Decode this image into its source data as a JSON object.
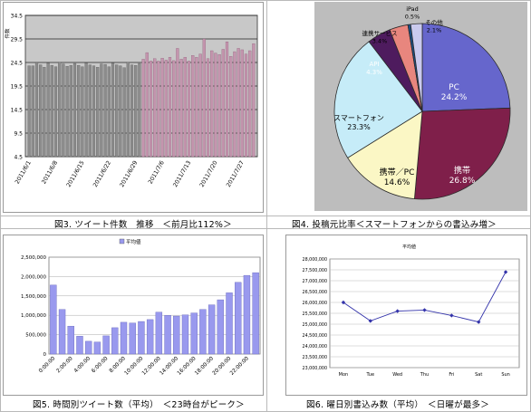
{
  "chart_data": [
    {
      "type": "bar",
      "caption": "図3. ツイート件数　推移　＜前月比112%＞",
      "ylabel": "件数",
      "ylim": [
        4.5,
        34.5
      ],
      "yticks": [
        "4.5",
        "9.5",
        "14.5",
        "19.5",
        "24.5",
        "29.5",
        "34.5"
      ],
      "xtick_labels": [
        "2011/6/1",
        "2011/6/8",
        "2011/6/15",
        "2011/6/22",
        "2011/6/29",
        "2011/7/6",
        "2011/7/13",
        "2011/7/20",
        "2011/7/27"
      ],
      "series": [
        {
          "color": "#8c8c8c",
          "values": [
            23.8,
            23.8,
            24.5,
            24.0,
            23.5,
            24.4,
            23.9,
            23.6,
            24.6,
            24.2,
            23.7,
            23.9,
            24.3,
            23.9,
            23.6,
            24.4,
            24.0,
            23.8,
            23.5,
            24.2,
            24.1,
            23.6,
            24.4,
            24.0,
            23.8,
            23.4,
            24.6,
            24.0,
            23.9,
            24.3
          ]
        },
        {
          "color": "#c495ae",
          "values": [
            25.2,
            26.6,
            24.8,
            25.3,
            24.8,
            25.4,
            25.0,
            25.6,
            24.9,
            27.5,
            25.2,
            25.6,
            24.8,
            26.0,
            25.6,
            26.3,
            29.5,
            25.3,
            27.0,
            26.5,
            26.2,
            27.3,
            28.9,
            25.8,
            26.8,
            27.5,
            27.2,
            26.3,
            27.0,
            28.5
          ]
        }
      ],
      "grid": true
    },
    {
      "type": "pie",
      "caption": "図4. 投稿元比率＜スマートフォンからの書込み増＞",
      "slices": [
        {
          "label": "PC",
          "value": 24.2,
          "display": "24.2%",
          "color": "#6666cc"
        },
        {
          "label": "携帯",
          "value": 26.8,
          "display": "26.8%",
          "color": "#7f1f4a"
        },
        {
          "label": "携帯／PC",
          "value": 14.6,
          "display": "14.6%",
          "color": "#fbf7c5"
        },
        {
          "label": "スマートフォン",
          "value": 23.3,
          "display": "23.3%",
          "color": "#c6ecf8"
        },
        {
          "label": "API",
          "value": 4.3,
          "display": "4.3%",
          "color": "#4e1b5e"
        },
        {
          "label": "連携サービス",
          "value": 3.4,
          "display": "3.4%",
          "color": "#e8867e"
        },
        {
          "label": "iPad",
          "value": 0.5,
          "display": "0.5%",
          "color": "#1a4f86"
        },
        {
          "label": "その他",
          "value": 2.1,
          "display": "2.1%",
          "color": "#cacaee"
        }
      ]
    },
    {
      "type": "bar",
      "caption": "図5. 時間別ツイート数（平均）　＜23時台がピーク＞",
      "legend": "平均値",
      "legend_position": "top-center",
      "ylim": [
        0,
        2500000
      ],
      "yticks": [
        "0",
        "500,000",
        "1,000,000",
        "1,500,000",
        "2,000,000",
        "2,500,000"
      ],
      "categories": [
        "0:00:00",
        "1:00:00",
        "2:00:00",
        "3:00:00",
        "4:00:00",
        "5:00:00",
        "6:00:00",
        "7:00:00",
        "8:00:00",
        "9:00:00",
        "10:00:00",
        "11:00:00",
        "12:00:00",
        "13:00:00",
        "14:00:00",
        "15:00:00",
        "16:00:00",
        "17:00:00",
        "18:00:00",
        "19:00:00",
        "20:00:00",
        "21:00:00",
        "22:00:00",
        "23:00:00"
      ],
      "visible_tick_labels": [
        "0:00:00",
        "",
        "2:00:00",
        "",
        "4:00:00",
        "",
        "6:00:00",
        "",
        "8:00:00",
        "",
        "10:00:00",
        "",
        "12:00:00",
        "",
        "14:00:00",
        "",
        "16:00:00",
        "",
        "18:00:00",
        "",
        "20:00:00",
        "",
        "22:00:00",
        ""
      ],
      "values": [
        1780000,
        1150000,
        720000,
        460000,
        330000,
        310000,
        470000,
        680000,
        820000,
        800000,
        840000,
        890000,
        1080000,
        1000000,
        980000,
        1010000,
        1060000,
        1150000,
        1270000,
        1400000,
        1580000,
        1850000,
        2030000,
        2100000
      ],
      "bar_color": "#9999ee",
      "grid": true
    },
    {
      "type": "line",
      "caption": "図6. 曜日別書込み数（平均）　＜日曜が最多＞",
      "legend": "平均値",
      "legend_position": "top-center",
      "ylim": [
        23000000,
        28000000
      ],
      "yticks": [
        "23,000,000",
        "23,500,000",
        "24,000,000",
        "24,500,000",
        "25,000,000",
        "25,500,000",
        "26,000,000",
        "26,500,000",
        "27,000,000",
        "27,500,000",
        "28,000,000"
      ],
      "categories": [
        "Mon",
        "Tue",
        "Wed",
        "Thu",
        "Fri",
        "Sat",
        "Sun"
      ],
      "values": [
        26000000,
        25150000,
        25600000,
        25650000,
        25400000,
        25100000,
        27400000
      ],
      "line_color": "#3333aa",
      "grid": true
    }
  ]
}
